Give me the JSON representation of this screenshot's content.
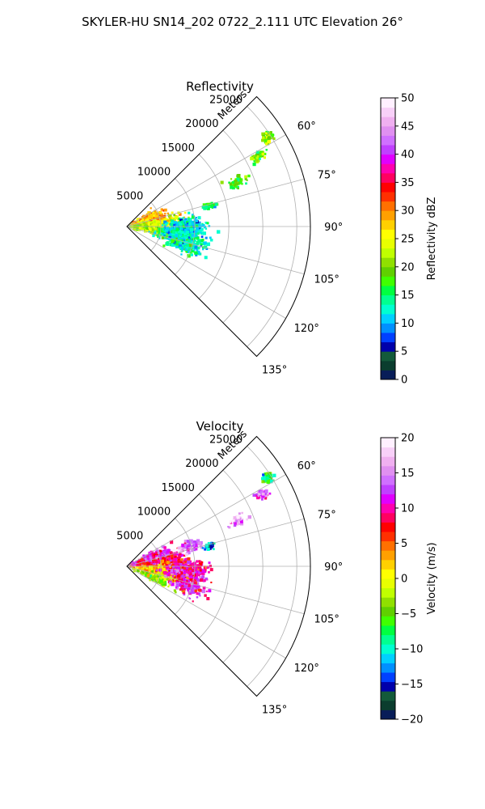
{
  "figure": {
    "suptitle": "SKYLER-HU  SN14_202  0722_2.111 UTC Elevation 26°"
  },
  "chart_data": [
    {
      "type": "heatmap",
      "subtype": "polar-sector-radar",
      "title": "Reflectivity",
      "radial_label": "Meters",
      "radial_ticks": [
        5000,
        10000,
        15000,
        20000,
        25000
      ],
      "r_max": 27000,
      "angle_ticks": [
        "60°",
        "75°",
        "90°",
        "105°",
        "120°",
        "135°"
      ],
      "angle_tick_values": [
        60,
        75,
        90,
        105,
        120,
        135
      ],
      "theta_range": [
        45,
        135
      ],
      "colorbar": {
        "label": "Reflectivity dBZ",
        "range": [
          0,
          50
        ],
        "ticks": [
          "0",
          "5",
          "10",
          "15",
          "20",
          "25",
          "30",
          "35",
          "40",
          "45",
          "50"
        ],
        "tick_values": [
          0,
          5,
          10,
          15,
          20,
          25,
          30,
          35,
          40,
          45,
          50
        ],
        "colors": [
          "#081d58",
          "#0b3d2e",
          "#135a3a",
          "#0000aa",
          "#0040ff",
          "#0090ff",
          "#00d0ff",
          "#00ffd0",
          "#00ff90",
          "#00ff40",
          "#40ff00",
          "#60d000",
          "#90e000",
          "#c0ff00",
          "#e8ff00",
          "#ffff00",
          "#ffd000",
          "#ffa000",
          "#ff7000",
          "#ff3000",
          "#ff0000",
          "#ff0060",
          "#ff00b0",
          "#e000ff",
          "#c040ff",
          "#d070ff",
          "#e090f0",
          "#f0b0f0",
          "#f8d0f8",
          "#fff0ff"
        ]
      },
      "echo_blobs": [
        {
          "theta": 70,
          "r": 3000,
          "level": 28,
          "spread_r": 2500,
          "spread_t": 10,
          "n": 260
        },
        {
          "theta": 82,
          "r": 5000,
          "level": 26,
          "spread_r": 3000,
          "spread_t": 8,
          "n": 220
        },
        {
          "theta": 95,
          "r": 4000,
          "level": 22,
          "spread_r": 3500,
          "spread_t": 12,
          "n": 260
        },
        {
          "theta": 100,
          "r": 8000,
          "level": 13,
          "spread_r": 3500,
          "spread_t": 10,
          "n": 420
        },
        {
          "theta": 90,
          "r": 9000,
          "level": 12,
          "spread_r": 2500,
          "spread_t": 8,
          "n": 260
        },
        {
          "theta": 108,
          "r": 9000,
          "level": 14,
          "spread_r": 2500,
          "spread_t": 6,
          "n": 180
        },
        {
          "theta": 68,
          "r": 17500,
          "level": 18,
          "spread_r": 1500,
          "spread_t": 2.5,
          "n": 60
        },
        {
          "theta": 62,
          "r": 22000,
          "level": 19,
          "spread_r": 1000,
          "spread_t": 2,
          "n": 40
        },
        {
          "theta": 58,
          "r": 24500,
          "level": 20,
          "spread_r": 800,
          "spread_t": 2,
          "n": 50
        },
        {
          "theta": 76,
          "r": 12500,
          "level": 16,
          "spread_r": 1000,
          "spread_t": 2,
          "n": 35
        }
      ]
    },
    {
      "type": "heatmap",
      "subtype": "polar-sector-radar",
      "title": "Velocity",
      "radial_label": "Meters",
      "radial_ticks": [
        5000,
        10000,
        15000,
        20000,
        25000
      ],
      "r_max": 27000,
      "angle_ticks": [
        "60°",
        "75°",
        "90°",
        "105°",
        "120°",
        "135°"
      ],
      "angle_tick_values": [
        60,
        75,
        90,
        105,
        120,
        135
      ],
      "theta_range": [
        45,
        135
      ],
      "colorbar": {
        "label": "Velocity (m/s)",
        "range": [
          -20,
          20
        ],
        "ticks": [
          "−20",
          "−15",
          "−10",
          "−5",
          "0",
          "5",
          "10",
          "15",
          "20"
        ],
        "tick_values": [
          -20,
          -15,
          -10,
          -5,
          0,
          5,
          10,
          15,
          20
        ],
        "colors": [
          "#081d58",
          "#0b3d2e",
          "#135a3a",
          "#0000aa",
          "#0040ff",
          "#0090ff",
          "#00d0ff",
          "#00ffd0",
          "#00ff90",
          "#00ff40",
          "#40ff00",
          "#60d000",
          "#90e000",
          "#c0ff00",
          "#e8ff00",
          "#ffff00",
          "#ffd000",
          "#ffa000",
          "#ff7000",
          "#ff3000",
          "#ff0000",
          "#ff0060",
          "#ff00b0",
          "#e000ff",
          "#c040ff",
          "#d070ff",
          "#e090f0",
          "#f0b0f0",
          "#f8d0f8",
          "#fff0ff"
        ]
      },
      "echo_blobs": [
        {
          "theta": 72,
          "r": 4000,
          "level": 11,
          "spread_r": 3000,
          "spread_t": 10,
          "n": 300
        },
        {
          "theta": 85,
          "r": 6000,
          "level": 8,
          "spread_r": 3000,
          "spread_t": 8,
          "n": 260
        },
        {
          "theta": 100,
          "r": 5000,
          "level": 2,
          "spread_r": 3000,
          "spread_t": 10,
          "n": 300
        },
        {
          "theta": 112,
          "r": 4500,
          "level": -3,
          "spread_r": 2500,
          "spread_t": 6,
          "n": 160
        },
        {
          "theta": 95,
          "r": 9000,
          "level": 10,
          "spread_r": 3000,
          "spread_t": 8,
          "n": 300
        },
        {
          "theta": 108,
          "r": 9500,
          "level": 11,
          "spread_r": 2500,
          "spread_t": 6,
          "n": 160
        },
        {
          "theta": 72,
          "r": 9500,
          "level": 14,
          "spread_r": 1500,
          "spread_t": 5,
          "n": 100
        },
        {
          "theta": 76,
          "r": 12500,
          "level": -13,
          "spread_r": 800,
          "spread_t": 2,
          "n": 30
        },
        {
          "theta": 68,
          "r": 17500,
          "level": 16,
          "spread_r": 1500,
          "spread_t": 2.5,
          "n": 50
        },
        {
          "theta": 62,
          "r": 22500,
          "level": 13,
          "spread_r": 1000,
          "spread_t": 2,
          "n": 40
        },
        {
          "theta": 58,
          "r": 24500,
          "level": -8,
          "spread_r": 800,
          "spread_t": 2,
          "n": 50
        }
      ]
    }
  ]
}
